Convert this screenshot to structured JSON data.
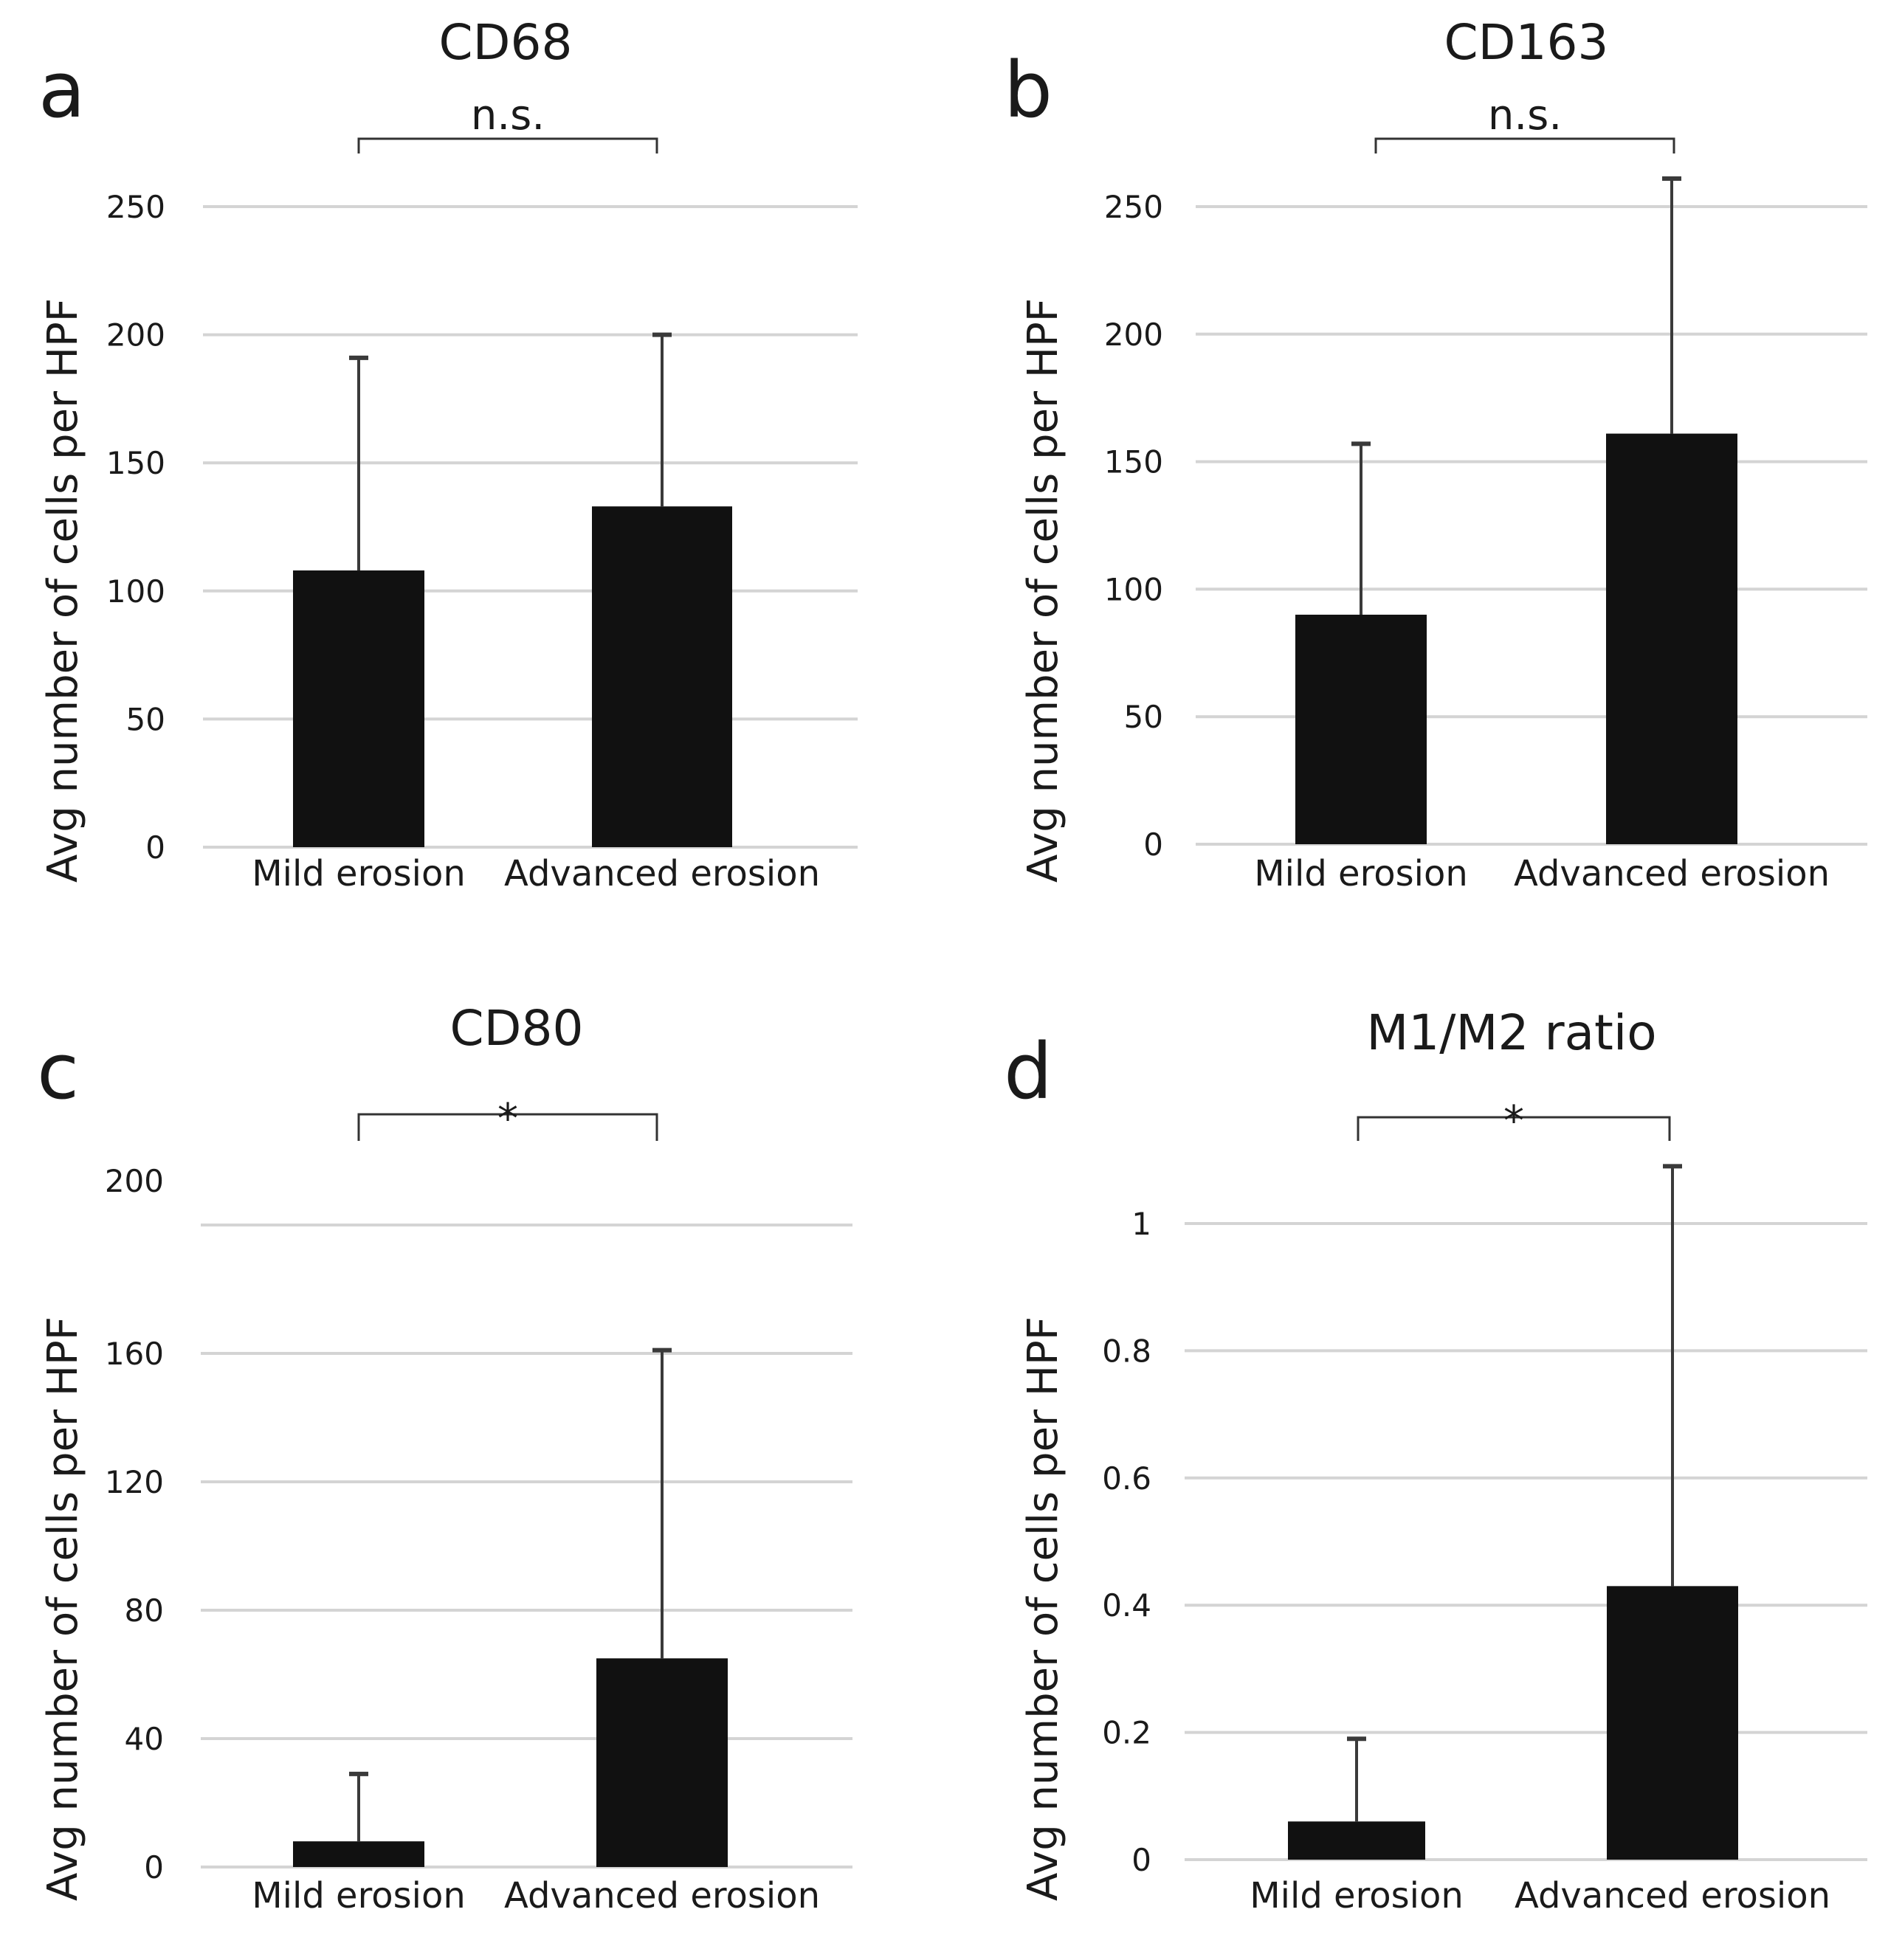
{
  "figure": {
    "panels": [
      "a",
      "b",
      "c",
      "d"
    ]
  },
  "chart_data": [
    {
      "panel": "a",
      "type": "bar",
      "title": "CD68",
      "categories": [
        "Mild erosion",
        "Advanced erosion"
      ],
      "series": [
        {
          "name": "CD68",
          "values": [
            108,
            133
          ]
        }
      ],
      "error_upper": [
        191,
        200
      ],
      "ylabel": "Avg number of cells per HPF",
      "xlabel": "",
      "ylim": [
        0,
        250
      ],
      "yticks": [
        0,
        50,
        100,
        150,
        200,
        250
      ],
      "ytick_labels": [
        "0",
        "50",
        "100",
        "150",
        "200",
        "250"
      ],
      "significance": "n.s.",
      "grid": true
    },
    {
      "panel": "b",
      "type": "bar",
      "title": "CD163",
      "categories": [
        "Mild erosion",
        "Advanced erosion"
      ],
      "series": [
        {
          "name": "CD163",
          "values": [
            90,
            161
          ]
        }
      ],
      "error_upper": [
        157,
        261
      ],
      "ylabel": "Avg number of cells per HPF",
      "xlabel": "",
      "ylim": [
        0,
        250
      ],
      "yticks": [
        0,
        50,
        100,
        150,
        200,
        250
      ],
      "ytick_labels": [
        "0",
        "50",
        "100",
        "150",
        "200",
        "250"
      ],
      "significance": "n.s.",
      "grid": true
    },
    {
      "panel": "c",
      "type": "bar",
      "title": "CD80",
      "categories": [
        "Mild erosion",
        "Advanced erosion"
      ],
      "series": [
        {
          "name": "CD80",
          "values": [
            8,
            65
          ]
        }
      ],
      "error_upper": [
        29,
        161
      ],
      "ylabel": "Avg number of cells per HPF",
      "xlabel": "",
      "ylim": [
        0,
        200
      ],
      "yticks": [
        0,
        40,
        80,
        120,
        160,
        200
      ],
      "ytick_labels": [
        "0",
        "40",
        "80",
        "120",
        "160",
        "200"
      ],
      "significance": "*",
      "grid": true
    },
    {
      "panel": "d",
      "type": "bar",
      "title": "M1/M2 ratio",
      "categories": [
        "Mild erosion",
        "Advanced erosion"
      ],
      "series": [
        {
          "name": "M1/M2 ratio",
          "values": [
            0.06,
            0.43
          ]
        }
      ],
      "error_upper": [
        0.19,
        1.09
      ],
      "ylabel": "Avg number of cells per HPF",
      "xlabel": "",
      "ylim": [
        0,
        1.2
      ],
      "yticks": [
        0,
        0.2,
        0.4,
        0.6,
        0.8,
        1
      ],
      "ytick_labels": [
        "0",
        "0.2",
        "0.4",
        "0.6",
        "0.8",
        "1"
      ],
      "significance": "*",
      "grid": true
    }
  ]
}
